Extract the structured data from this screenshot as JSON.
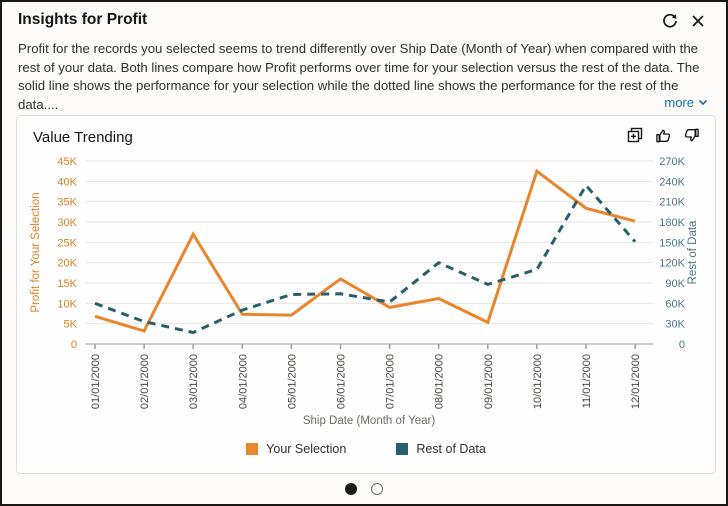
{
  "window": {
    "title": "Insights for Profit"
  },
  "header_icons": {
    "refresh": "refresh-icon",
    "close": "close-icon"
  },
  "description": {
    "text": "Profit for the records you selected seems to trend differently over Ship Date (Month of Year) when compared with the rest of your data. Both lines compare how Profit performs over time for your selection versus the rest of the data. The solid line shows the performance for your selection while the dotted line shows the performance for the rest of the data....",
    "more_label": "more"
  },
  "card_icons": {
    "add_to_workbook": "add-to-workbook-icon",
    "thumbs_up": "thumbs-up-icon",
    "thumbs_down": "thumbs-down-icon"
  },
  "colors": {
    "selection_orange": "#e8862d",
    "rest_teal": "#26606d",
    "left_axis_text": "#db8124",
    "right_axis_text": "#4a7683",
    "link_blue": "#1970ab",
    "grid": "#e8e6e2",
    "axis_line": "#a09c96",
    "x_tick_text": "#4a4641",
    "text_dark": "#161513"
  },
  "chart_data": {
    "type": "line",
    "title": "Value Trending",
    "x": [
      "01/01/2000",
      "02/01/2000",
      "03/01/2000",
      "04/01/2000",
      "05/01/2000",
      "06/01/2000",
      "07/01/2000",
      "08/01/2000",
      "09/01/2000",
      "10/01/2000",
      "11/01/2000",
      "12/01/2000"
    ],
    "xlabel": "Ship Date (Month of Year)",
    "grid": true,
    "legend_position": "bottom",
    "left_axis": {
      "label": "Profit for Your Selection",
      "min": 0,
      "max": 45000,
      "tick_step": 5000
    },
    "right_axis": {
      "label": "Rest of Data",
      "min": 0,
      "max": 270000,
      "tick_step": 30000
    },
    "series": [
      {
        "name": "Your Selection",
        "axis": "left",
        "style": "solid",
        "color": "#e8862d",
        "values": [
          6800,
          3200,
          27000,
          7300,
          7100,
          16000,
          9000,
          11200,
          5300,
          42500,
          33400,
          30200
        ]
      },
      {
        "name": "Rest of Data",
        "axis": "right",
        "style": "dashed",
        "color": "#26606d",
        "values": [
          60000,
          33000,
          17000,
          50000,
          73000,
          74000,
          62000,
          120000,
          88000,
          110000,
          234000,
          151000
        ]
      }
    ]
  },
  "pagination": {
    "total_pages": 2,
    "active_page": 1
  }
}
